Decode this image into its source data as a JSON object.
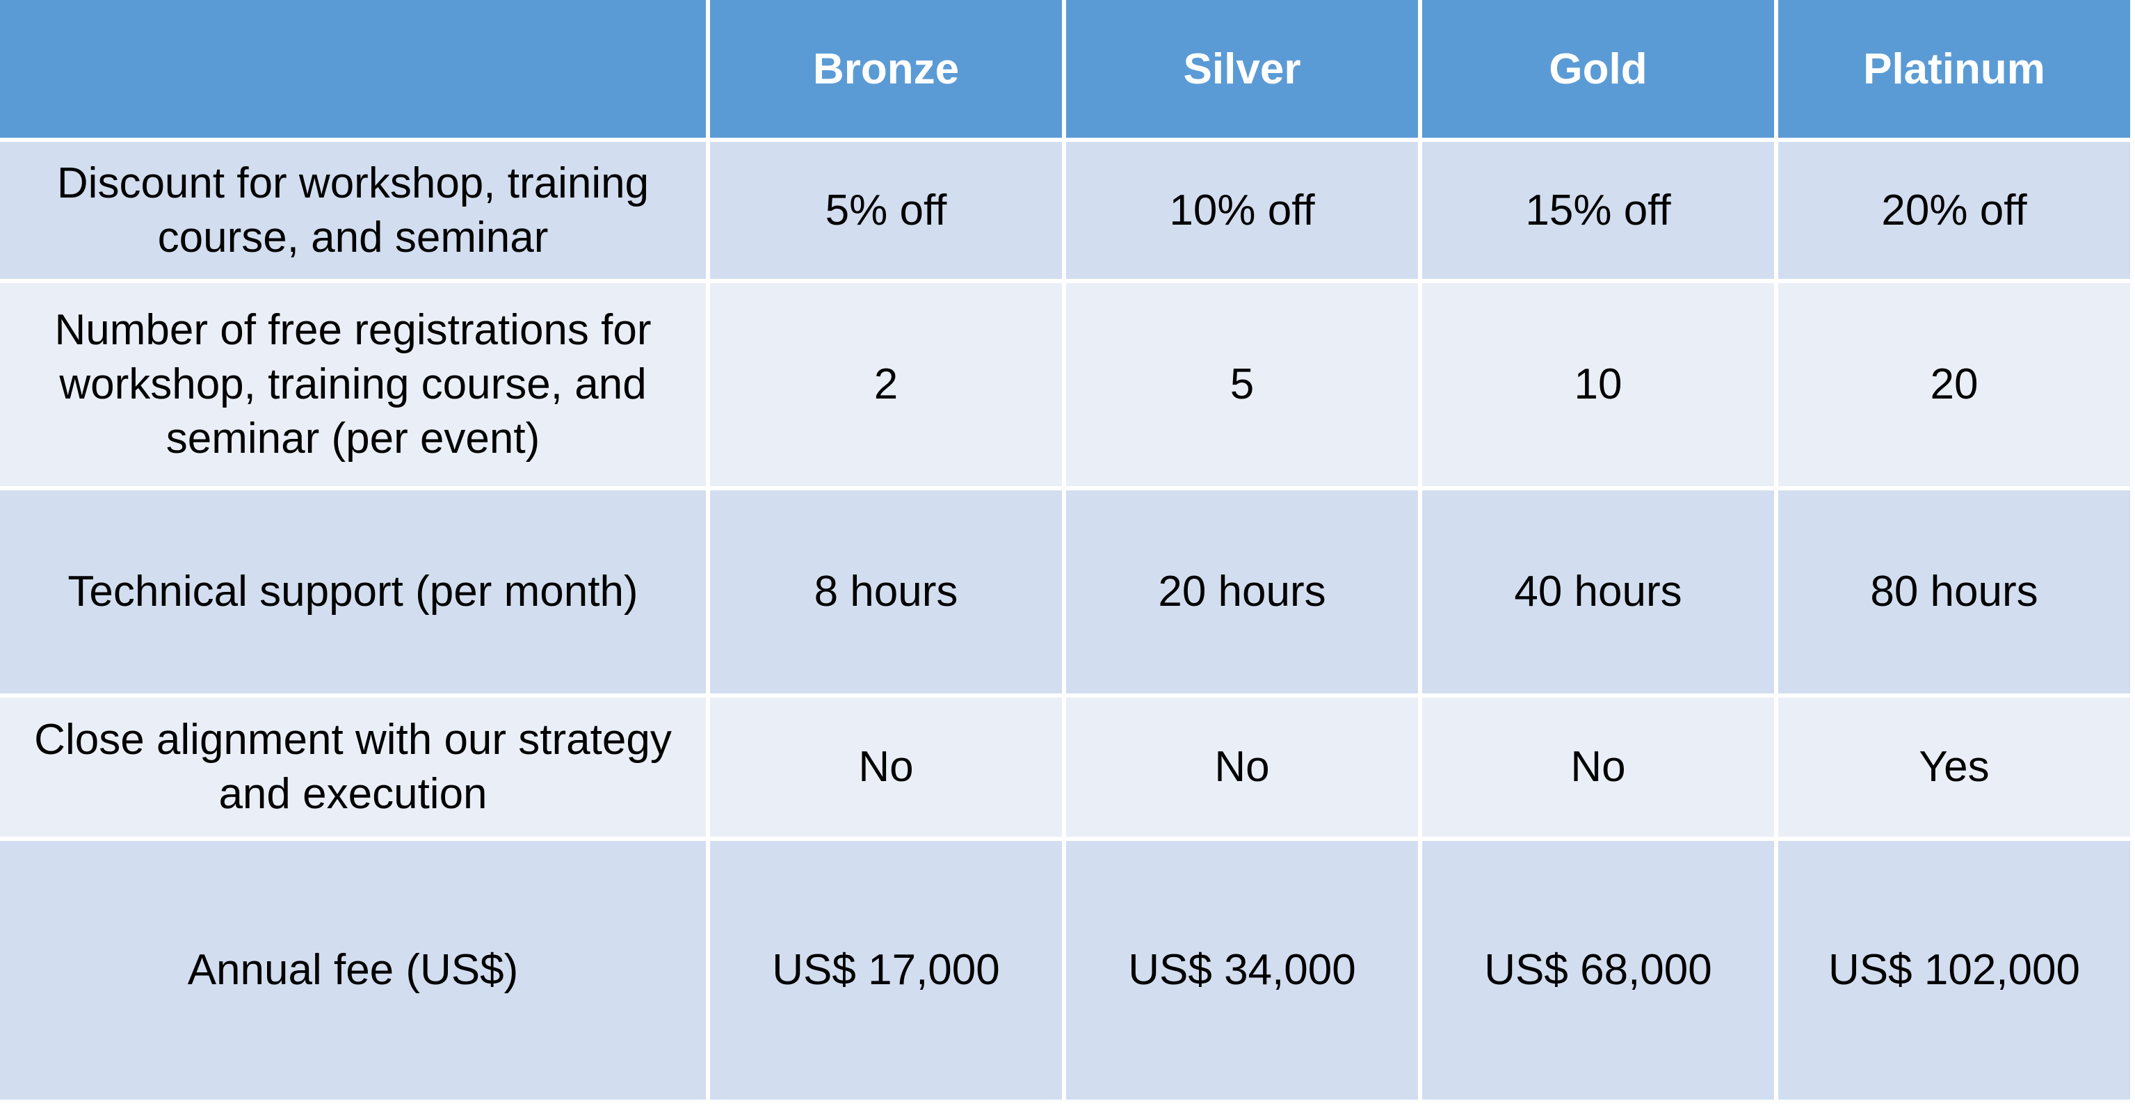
{
  "table": {
    "headers": [
      "",
      "Bronze",
      "Silver",
      "Gold",
      "Platinum"
    ],
    "rows": [
      {
        "label": "Discount for workshop, training course, and seminar",
        "values": [
          "5% off",
          "10% off",
          "15% off",
          "20% off"
        ]
      },
      {
        "label": "Number of free registrations for workshop, training course, and seminar (per event)",
        "values": [
          "2",
          "5",
          "10",
          "20"
        ]
      },
      {
        "label": "Technical support (per month)",
        "values": [
          "8 hours",
          "20 hours",
          "40 hours",
          "80 hours"
        ]
      },
      {
        "label": "Close alignment with our strategy and execution",
        "values": [
          "No",
          "No",
          "No",
          "Yes"
        ]
      },
      {
        "label": "Annual fee (US$)",
        "values": [
          "US$ 17,000",
          "US$ 34,000",
          "US$ 68,000",
          "US$ 102,000"
        ]
      }
    ]
  },
  "colors": {
    "header_bg": "#5b9bd5",
    "header_text": "#ffffff",
    "row_odd_bg": "#d2deef",
    "row_even_bg": "#eaeff7",
    "grid_lines": "#ffffff"
  }
}
